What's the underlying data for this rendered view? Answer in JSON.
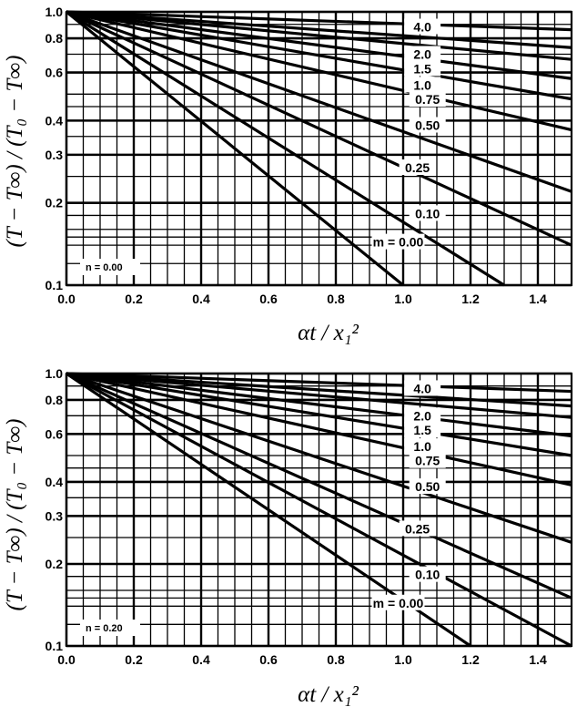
{
  "chart_data": [
    {
      "type": "line",
      "panel": "top",
      "xlabel": "αt / x₁²",
      "ylabel": "(T − T∞) / (T₀ − T∞)",
      "xlim": [
        0.0,
        1.5
      ],
      "ylim": [
        0.1,
        1.0
      ],
      "yscale": "log",
      "grid": true,
      "x_ticks": [
        "0.0",
        "0.2",
        "0.4",
        "0.6",
        "0.8",
        "1.0",
        "1.2",
        "1.4"
      ],
      "y_ticks": [
        "1.0",
        "0.8",
        "0.6",
        "0.4",
        "0.3",
        "0.2",
        "0.1"
      ],
      "annotation": "n = 0.00",
      "series": [
        {
          "name": "4.0",
          "x": [
            0.0,
            1.5
          ],
          "y": [
            1.0,
            0.86
          ]
        },
        {
          "name": "2.0",
          "x": [
            0.0,
            1.5
          ],
          "y": [
            1.0,
            0.74
          ]
        },
        {
          "name": "1.5",
          "x": [
            0.0,
            1.5
          ],
          "y": [
            1.0,
            0.67
          ]
        },
        {
          "name": "1.0",
          "x": [
            0.0,
            1.5
          ],
          "y": [
            1.0,
            0.57
          ]
        },
        {
          "name": "0.75",
          "x": [
            0.0,
            1.5
          ],
          "y": [
            1.0,
            0.48
          ]
        },
        {
          "name": "0.50",
          "x": [
            0.0,
            1.5
          ],
          "y": [
            1.0,
            0.37
          ]
        },
        {
          "name": "0.25",
          "x": [
            0.0,
            1.5
          ],
          "y": [
            1.0,
            0.22
          ]
        },
        {
          "name": "0.10",
          "x": [
            0.0,
            1.5
          ],
          "y": [
            1.0,
            0.14
          ]
        },
        {
          "name": "m = 0.00",
          "x": [
            0.0,
            1.3
          ],
          "y": [
            1.0,
            0.1
          ]
        },
        {
          "name": "",
          "x": [
            0.0,
            1.0
          ],
          "y": [
            1.0,
            0.1
          ]
        }
      ]
    },
    {
      "type": "line",
      "panel": "bottom",
      "xlabel": "αt / x₁²",
      "ylabel": "(T − T∞) / (T₀ − T∞)",
      "xlim": [
        0.0,
        1.5
      ],
      "ylim": [
        0.1,
        1.0
      ],
      "yscale": "log",
      "grid": true,
      "x_ticks": [
        "0.0",
        "0.2",
        "0.4",
        "0.6",
        "0.8",
        "1.0",
        "1.2",
        "1.4"
      ],
      "y_ticks": [
        "1.0",
        "0.8",
        "0.6",
        "0.4",
        "0.3",
        "0.2",
        "0.1"
      ],
      "annotation": "n = 0.20",
      "series": [
        {
          "name": "4.0",
          "x": [
            0.0,
            1.5
          ],
          "y": [
            1.0,
            0.86
          ]
        },
        {
          "name": "2.0",
          "x": [
            0.0,
            1.5
          ],
          "y": [
            1.0,
            0.76
          ]
        },
        {
          "name": "1.5",
          "x": [
            0.0,
            1.5
          ],
          "y": [
            1.0,
            0.69
          ]
        },
        {
          "name": "1.0",
          "x": [
            0.0,
            1.5
          ],
          "y": [
            1.0,
            0.59
          ]
        },
        {
          "name": "0.75",
          "x": [
            0.0,
            1.5
          ],
          "y": [
            1.0,
            0.5
          ]
        },
        {
          "name": "0.50",
          "x": [
            0.0,
            1.5
          ],
          "y": [
            1.0,
            0.39
          ]
        },
        {
          "name": "0.25",
          "x": [
            0.0,
            1.5
          ],
          "y": [
            1.0,
            0.24
          ]
        },
        {
          "name": "0.10",
          "x": [
            0.0,
            1.5
          ],
          "y": [
            1.0,
            0.15
          ]
        },
        {
          "name": "m = 0.00",
          "x": [
            0.0,
            1.5
          ],
          "y": [
            1.0,
            0.1
          ]
        },
        {
          "name": "",
          "x": [
            0.0,
            1.2
          ],
          "y": [
            1.0,
            0.1
          ]
        }
      ]
    }
  ]
}
